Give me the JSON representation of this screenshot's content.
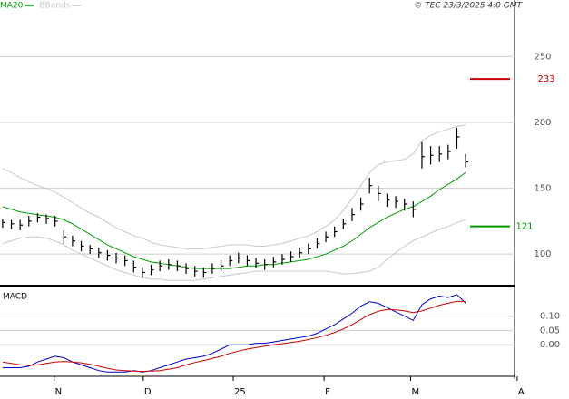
{
  "chart_data": [
    {
      "type": "ohlc",
      "source": "© TEC 23/3/2025 4:0 GMT",
      "x": [
        0,
        1,
        2,
        3,
        4,
        5,
        6,
        7,
        8,
        9,
        10,
        11,
        12,
        13,
        14,
        15,
        16,
        17,
        18,
        19,
        20,
        21,
        22,
        23,
        24,
        25,
        26,
        27,
        28,
        29,
        30,
        31,
        32,
        33,
        34,
        35,
        36,
        37,
        38,
        39,
        40,
        41,
        42,
        43,
        44,
        45,
        46,
        47,
        48,
        49,
        50,
        51,
        52,
        53
      ],
      "xlim": [
        -0.3,
        58.6
      ],
      "high": [
        127,
        126,
        126,
        129,
        131,
        130,
        129,
        118,
        114,
        110,
        107,
        105,
        103,
        101,
        99,
        95,
        90,
        92,
        95,
        96,
        95,
        93,
        91,
        90,
        93,
        95,
        99,
        101,
        99,
        97,
        96,
        98,
        100,
        102,
        105,
        108,
        112,
        117,
        121,
        127,
        135,
        143,
        158,
        152,
        146,
        144,
        142,
        140,
        185,
        182,
        182,
        183,
        196,
        176
      ],
      "low": [
        120,
        119,
        118,
        121,
        124,
        123,
        121,
        108,
        106,
        102,
        100,
        97,
        95,
        93,
        91,
        86,
        82,
        84,
        87,
        88,
        87,
        85,
        83,
        82,
        85,
        87,
        91,
        93,
        91,
        89,
        88,
        90,
        92,
        94,
        97,
        100,
        104,
        109,
        113,
        119,
        125,
        133,
        146,
        140,
        136,
        135,
        133,
        128,
        165,
        168,
        170,
        172,
        180,
        166
      ],
      "close": [
        124,
        123,
        122,
        125,
        128,
        127,
        125,
        113,
        110,
        106,
        104,
        101,
        99,
        97,
        95,
        90,
        86,
        88,
        91,
        92,
        91,
        89,
        87,
        86,
        89,
        91,
        95,
        97,
        95,
        93,
        92,
        94,
        96,
        98,
        101,
        104,
        108,
        113,
        117,
        123,
        130,
        138,
        152,
        146,
        141,
        140,
        138,
        134,
        174,
        175,
        176,
        178,
        189,
        170
      ],
      "color": "#000000",
      "series": [
        {
          "name": "MA20",
          "color": "#00a000",
          "values": [
            136,
            134,
            132,
            131,
            130,
            129,
            128,
            126,
            123,
            119,
            115,
            111,
            107,
            104,
            101,
            98,
            96,
            94,
            93,
            92,
            91,
            90,
            89,
            89,
            89,
            89,
            89,
            90,
            91,
            91,
            92,
            92,
            93,
            94,
            95,
            96,
            98,
            100,
            103,
            106,
            110,
            115,
            120,
            124,
            128,
            131,
            134,
            136,
            140,
            144,
            149,
            153,
            157,
            162
          ]
        },
        {
          "name": "BBands",
          "color": "#c8c8c8",
          "upper": [
            165,
            162,
            158,
            155,
            152,
            150,
            147,
            143,
            139,
            135,
            131,
            128,
            124,
            120,
            117,
            114,
            112,
            109,
            107,
            106,
            105,
            104,
            104,
            104,
            105,
            106,
            107,
            107,
            107,
            106,
            106,
            107,
            108,
            110,
            112,
            114,
            117,
            121,
            126,
            133,
            142,
            152,
            162,
            168,
            170,
            171,
            172,
            176,
            186,
            190,
            193,
            195,
            197,
            198
          ],
          "lower": [
            108,
            110,
            112,
            113,
            113,
            112,
            110,
            107,
            103,
            100,
            97,
            94,
            91,
            88,
            86,
            84,
            82,
            81,
            81,
            80,
            80,
            80,
            80,
            81,
            82,
            83,
            84,
            85,
            86,
            87,
            87,
            87,
            87,
            87,
            87,
            87,
            87,
            87,
            86,
            85,
            85,
            86,
            87,
            90,
            96,
            101,
            106,
            110,
            113,
            116,
            119,
            121,
            124,
            126
          ]
        }
      ],
      "ylim": [
        76,
        293
      ],
      "yticks": [
        100,
        150,
        200,
        250
      ],
      "grid": true,
      "annotations": [
        {
          "value": 233,
          "color": "#cc0000"
        },
        {
          "value": 121,
          "color": "#009900"
        }
      ]
    },
    {
      "type": "line",
      "title": "MACD",
      "x": [
        0,
        1,
        2,
        3,
        4,
        5,
        6,
        7,
        8,
        9,
        10,
        11,
        12,
        13,
        14,
        15,
        16,
        17,
        18,
        19,
        20,
        21,
        22,
        23,
        24,
        25,
        26,
        27,
        28,
        29,
        30,
        31,
        32,
        33,
        34,
        35,
        36,
        37,
        38,
        39,
        40,
        41,
        42,
        43,
        44,
        45,
        46,
        47,
        48,
        49,
        50,
        51,
        52,
        53
      ],
      "xlim": [
        -0.3,
        58.6
      ],
      "xticks": [
        {
          "value": 5.9,
          "label": "N"
        },
        {
          "value": 16.1,
          "label": "D"
        },
        {
          "value": 26.4,
          "label": "25"
        },
        {
          "value": 36.8,
          "label": "F"
        },
        {
          "value": 46.7,
          "label": "M"
        },
        {
          "value": 58.9,
          "label": "A"
        }
      ],
      "series": [
        {
          "color": "#0000cc",
          "values": [
            -0.08,
            -0.08,
            -0.08,
            -0.075,
            -0.06,
            -0.05,
            -0.04,
            -0.045,
            -0.06,
            -0.07,
            -0.08,
            -0.09,
            -0.095,
            -0.095,
            -0.095,
            -0.09,
            -0.095,
            -0.09,
            -0.08,
            -0.07,
            -0.06,
            -0.05,
            -0.045,
            -0.04,
            -0.03,
            -0.015,
            0,
            0,
            0,
            0.005,
            0.005,
            0.01,
            0.015,
            0.02,
            0.025,
            0.03,
            0.04,
            0.055,
            0.07,
            0.09,
            0.11,
            0.135,
            0.15,
            0.145,
            0.13,
            0.115,
            0.1,
            0.085,
            0.14,
            0.16,
            0.17,
            0.165,
            0.175,
            0.145
          ]
        },
        {
          "color": "#cc0000",
          "values": [
            -0.06,
            -0.065,
            -0.07,
            -0.072,
            -0.07,
            -0.065,
            -0.06,
            -0.058,
            -0.06,
            -0.063,
            -0.068,
            -0.075,
            -0.082,
            -0.088,
            -0.09,
            -0.092,
            -0.093,
            -0.092,
            -0.09,
            -0.085,
            -0.08,
            -0.07,
            -0.062,
            -0.055,
            -0.048,
            -0.04,
            -0.03,
            -0.022,
            -0.015,
            -0.01,
            -0.005,
            0,
            0.004,
            0.008,
            0.012,
            0.018,
            0.025,
            0.033,
            0.043,
            0.055,
            0.07,
            0.088,
            0.105,
            0.117,
            0.123,
            0.122,
            0.118,
            0.112,
            0.118,
            0.128,
            0.138,
            0.145,
            0.152,
            0.15
          ]
        }
      ],
      "ylim": [
        -0.11,
        0.2
      ],
      "yticks": [
        {
          "value": 0.1,
          "label": "0.10"
        },
        {
          "value": 0.05,
          "label": "0.05"
        },
        {
          "value": 0,
          "label": "0.00"
        }
      ],
      "grid": true
    }
  ]
}
